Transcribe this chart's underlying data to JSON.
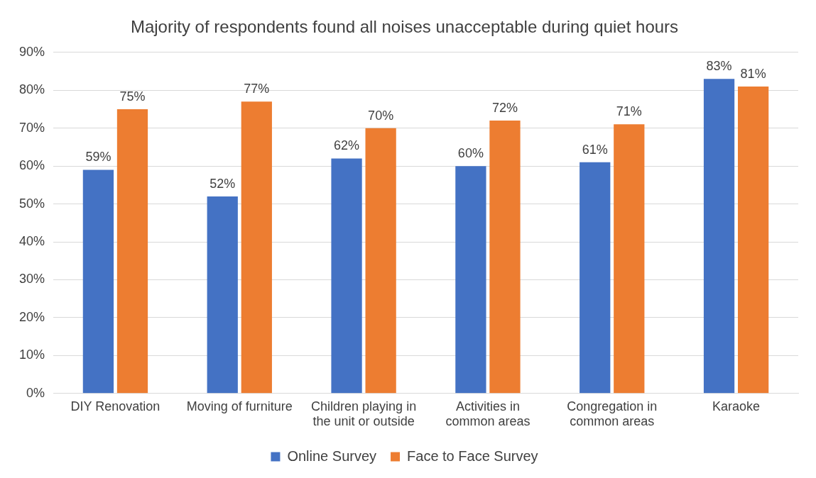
{
  "chart_data": {
    "type": "bar",
    "title": "Majority of respondents found all noises unacceptable during quiet hours",
    "categories": [
      "DIY Renovation",
      "Moving of furniture",
      "Children playing in the unit or outside",
      "Activities in common areas",
      "Congregation in common areas",
      "Karaoke"
    ],
    "series": [
      {
        "name": "Online Survey",
        "color": "#4472c4",
        "values": [
          59,
          52,
          62,
          60,
          61,
          83
        ],
        "value_labels": [
          "59%",
          "52%",
          "62%",
          "60%",
          "61%",
          "83%"
        ]
      },
      {
        "name": "Face to Face Survey",
        "color": "#ed7d31",
        "values": [
          75,
          77,
          70,
          72,
          71,
          81
        ],
        "value_labels": [
          "75%",
          "77%",
          "70%",
          "72%",
          "71%",
          "81%"
        ]
      }
    ],
    "ylim": [
      0,
      90
    ],
    "yticks": [
      {
        "value": 0,
        "label": "0%"
      },
      {
        "value": 10,
        "label": "10%"
      },
      {
        "value": 20,
        "label": "20%"
      },
      {
        "value": 30,
        "label": "30%"
      },
      {
        "value": 40,
        "label": "40%"
      },
      {
        "value": 50,
        "label": "50%"
      },
      {
        "value": 60,
        "label": "60%"
      },
      {
        "value": 70,
        "label": "70%"
      },
      {
        "value": 80,
        "label": "80%"
      },
      {
        "value": 90,
        "label": "90%"
      }
    ],
    "grid": "y",
    "legend": "bottom"
  }
}
